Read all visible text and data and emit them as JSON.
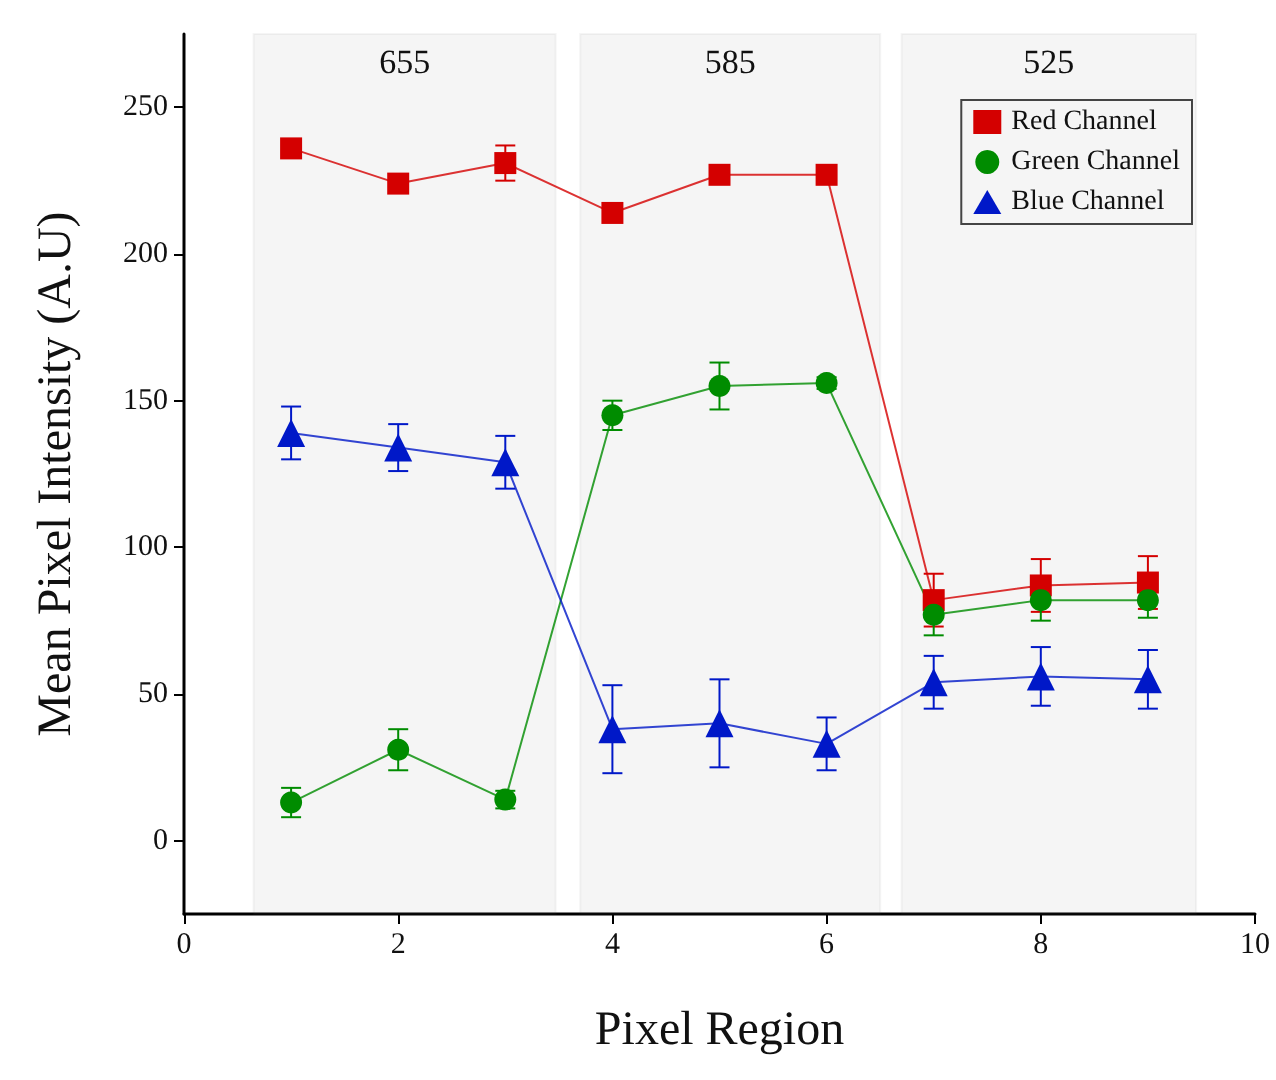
{
  "chart_data": {
    "type": "line",
    "xlabel": "Pixel Region",
    "ylabel": "Mean Pixel Intensity (A.U)",
    "x": [
      1,
      2,
      3,
      4,
      5,
      6,
      7,
      8,
      9
    ],
    "series": [
      {
        "name": "Red Channel",
        "color": "#d40000",
        "marker": "square",
        "values": [
          236,
          224,
          231,
          214,
          227,
          227,
          82,
          87,
          88
        ],
        "errors": [
          3,
          2,
          6,
          2,
          3,
          1,
          9,
          9,
          9
        ]
      },
      {
        "name": "Green Channel",
        "color": "#008c00",
        "marker": "circle",
        "values": [
          13,
          31,
          14,
          145,
          155,
          156,
          77,
          82,
          82
        ],
        "errors": [
          5,
          7,
          3,
          5,
          8,
          2,
          7,
          7,
          6
        ]
      },
      {
        "name": "Blue Channel",
        "color": "#0018c8",
        "marker": "triangle",
        "values": [
          139,
          134,
          129,
          38,
          40,
          33,
          54,
          56,
          55
        ],
        "errors": [
          9,
          8,
          9,
          15,
          15,
          9,
          9,
          10,
          10
        ]
      }
    ],
    "xlim": [
      0,
      10
    ],
    "xticks": [
      0,
      2,
      4,
      6,
      8,
      10
    ],
    "ylim": [
      -25,
      275
    ],
    "yticks": [
      0,
      50,
      100,
      150,
      200,
      250
    ],
    "bands": [
      {
        "axis": "x",
        "from": 0.65,
        "to": 3.47,
        "label": "655",
        "color": "#555555"
      },
      {
        "axis": "x",
        "from": 3.7,
        "to": 6.5,
        "label": "585",
        "color": "#555555"
      },
      {
        "axis": "x",
        "from": 6.7,
        "to": 9.45,
        "label": "525",
        "color": "#555555"
      }
    ],
    "grid": false,
    "legend": "top right",
    "line_style": "solid"
  }
}
